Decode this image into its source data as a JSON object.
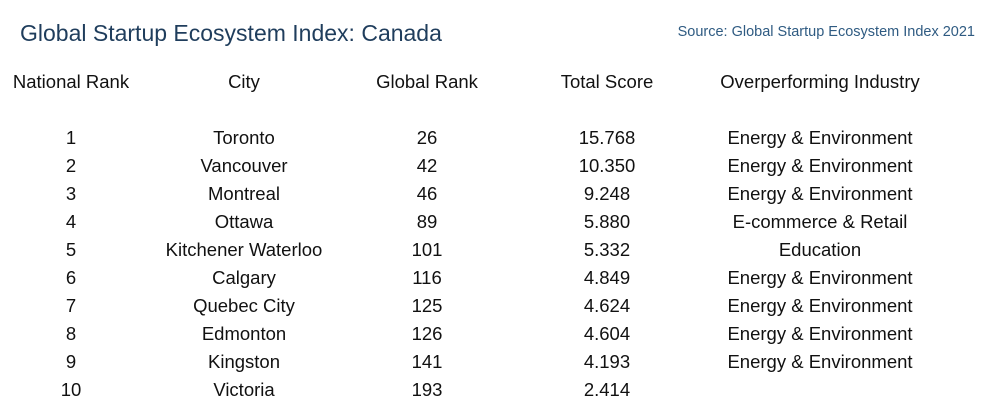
{
  "title": "Global Startup Ecosystem Index: Canada",
  "source": "Source: Global Startup Ecosystem Index 2021",
  "columns": {
    "national_rank": "National Rank",
    "city": "City",
    "global_rank": "Global Rank",
    "total_score": "Total Score",
    "industry": "Overperforming Industry"
  },
  "rows": [
    {
      "national_rank": "1",
      "city": "Toronto",
      "global_rank": "26",
      "total_score": "15.768",
      "industry": "Energy & Environment"
    },
    {
      "national_rank": "2",
      "city": "Vancouver",
      "global_rank": "42",
      "total_score": "10.350",
      "industry": "Energy & Environment"
    },
    {
      "national_rank": "3",
      "city": "Montreal",
      "global_rank": "46",
      "total_score": "9.248",
      "industry": "Energy & Environment"
    },
    {
      "national_rank": "4",
      "city": "Ottawa",
      "global_rank": "89",
      "total_score": "5.880",
      "industry": "E-commerce & Retail"
    },
    {
      "national_rank": "5",
      "city": "Kitchener Waterloo",
      "global_rank": "101",
      "total_score": "5.332",
      "industry": "Education"
    },
    {
      "national_rank": "6",
      "city": "Calgary",
      "global_rank": "116",
      "total_score": "4.849",
      "industry": "Energy & Environment"
    },
    {
      "national_rank": "7",
      "city": "Quebec City",
      "global_rank": "125",
      "total_score": "4.624",
      "industry": "Energy & Environment"
    },
    {
      "national_rank": "8",
      "city": "Edmonton",
      "global_rank": "126",
      "total_score": "4.604",
      "industry": "Energy & Environment"
    },
    {
      "national_rank": "9",
      "city": "Kingston",
      "global_rank": "141",
      "total_score": "4.193",
      "industry": "Energy & Environment"
    },
    {
      "national_rank": "10",
      "city": "Victoria",
      "global_rank": "193",
      "total_score": "2.414",
      "industry": ""
    }
  ]
}
